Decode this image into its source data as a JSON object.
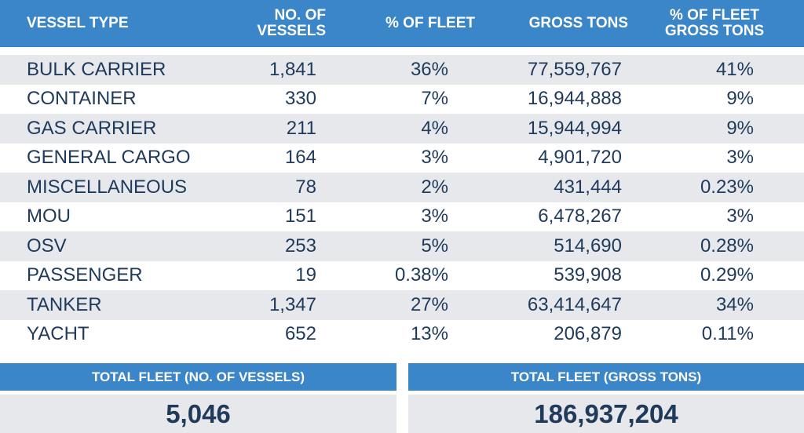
{
  "table": {
    "headers": {
      "vessel_type": "VESSEL TYPE",
      "no_of_vessels_line1": "NO. OF",
      "no_of_vessels_line2": "VESSELS",
      "pct_of_fleet": "% OF FLEET",
      "gross_tons": "GROSS TONS",
      "pct_gross_line1": "% OF FLEET",
      "pct_gross_line2": "GROSS TONS"
    },
    "rows": [
      {
        "type": "BULK CARRIER",
        "vessels": "1,841",
        "pct_fleet": "36%",
        "gross_tons": "77,559,767",
        "pct_gross": "41%"
      },
      {
        "type": "CONTAINER",
        "vessels": "330",
        "pct_fleet": "7%",
        "gross_tons": "16,944,888",
        "pct_gross": "9%"
      },
      {
        "type": "GAS CARRIER",
        "vessels": "211",
        "pct_fleet": "4%",
        "gross_tons": "15,944,994",
        "pct_gross": "9%"
      },
      {
        "type": "GENERAL CARGO",
        "vessels": "164",
        "pct_fleet": "3%",
        "gross_tons": "4,901,720",
        "pct_gross": "3%"
      },
      {
        "type": "MISCELLANEOUS",
        "vessels": "78",
        "pct_fleet": "2%",
        "gross_tons": "431,444",
        "pct_gross": "0.23%"
      },
      {
        "type": "MOU",
        "vessels": "151",
        "pct_fleet": "3%",
        "gross_tons": "6,478,267",
        "pct_gross": "3%"
      },
      {
        "type": "OSV",
        "vessels": "253",
        "pct_fleet": "5%",
        "gross_tons": "514,690",
        "pct_gross": "0.28%"
      },
      {
        "type": "PASSENGER",
        "vessels": "19",
        "pct_fleet": "0.38%",
        "gross_tons": "539,908",
        "pct_gross": "0.29%"
      },
      {
        "type": "TANKER",
        "vessels": "1,347",
        "pct_fleet": "27%",
        "gross_tons": "63,414,647",
        "pct_gross": "34%"
      },
      {
        "type": "YACHT",
        "vessels": "652",
        "pct_fleet": "13%",
        "gross_tons": "206,879",
        "pct_gross": "0.11%"
      }
    ]
  },
  "totals": {
    "vessels_label": "TOTAL FLEET (NO. OF VESSELS)",
    "vessels_value": "5,046",
    "gross_label": "TOTAL FLEET (GROSS TONS)",
    "gross_value": "186,937,204"
  },
  "colors": {
    "header_blue": "#3a86c8",
    "text_navy": "#1f3a5a",
    "stripe_grey": "#e6e8ec"
  }
}
